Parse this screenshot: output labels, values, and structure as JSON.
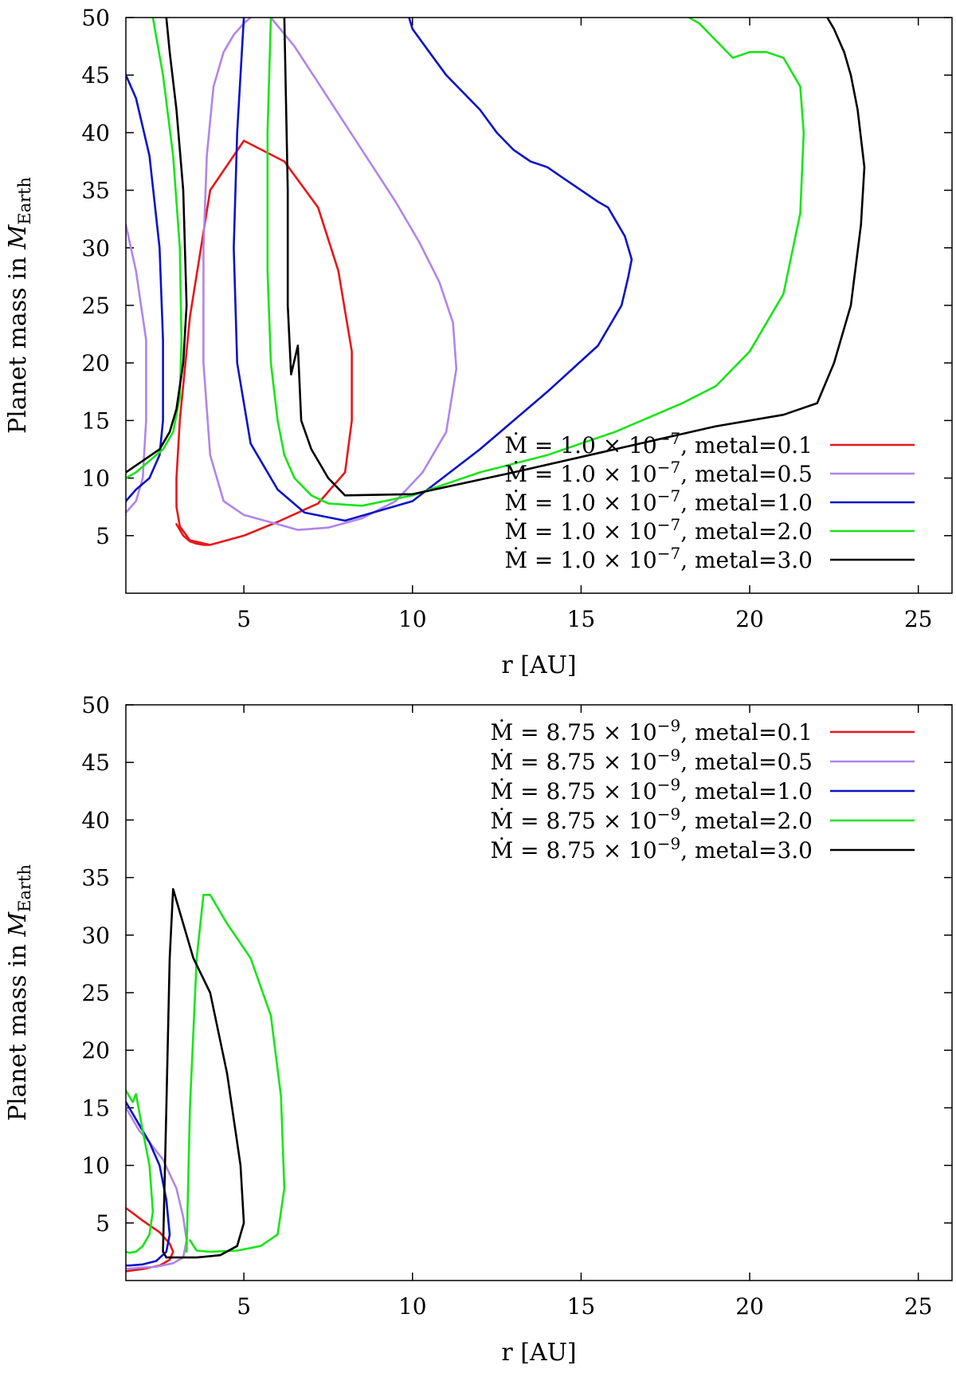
{
  "chart_data": [
    {
      "type": "line",
      "title": "",
      "xlabel": "r [AU]",
      "ylabel": "Planet mass in M_Earth",
      "ylabel_main": "Planet mass in ",
      "ylabel_symbol": "M",
      "ylabel_sub": "Earth",
      "xlim": [
        1.5,
        26
      ],
      "ylim": [
        0,
        50
      ],
      "xticks": [
        5,
        10,
        15,
        20,
        25
      ],
      "yticks": [
        5,
        10,
        15,
        20,
        25,
        30,
        35,
        40,
        45,
        50
      ],
      "grid": false,
      "legend_position": "bottom-right",
      "series": [
        {
          "name": "Ṁ = 1.0 × 10^-7, metal=0.1",
          "legend_prefix": "Ṁ = 1.0 × 10",
          "legend_exp": "−7",
          "legend_suffix": ", metal=0.1",
          "color": "#e8161a",
          "x": [
            4.0,
            3.4,
            3.1,
            3.0,
            3.0,
            3.1,
            3.4,
            4.0,
            5.0,
            6.2,
            7.2,
            7.8,
            8.2,
            8.2,
            8.0,
            7.2,
            6.0,
            5.0,
            4.0,
            3.8,
            3.6,
            3.4,
            3.2,
            3.0
          ],
          "y": [
            4.2,
            4.6,
            5.8,
            7.5,
            10,
            15,
            24,
            35,
            39.3,
            37.5,
            33.5,
            28,
            21,
            15,
            10.5,
            7.8,
            6.2,
            5.0,
            4.2,
            4.2,
            4.3,
            4.5,
            5.0,
            6.0
          ]
        },
        {
          "name": "Ṁ = 1.0 × 10^-7, metal=0.5 (inner)",
          "legend_prefix": "Ṁ = 1.0 × 10",
          "legend_exp": "−7",
          "legend_suffix": ", metal=0.5",
          "color": "#b085e8",
          "x": [
            1.5,
            1.8,
            2.1,
            2.1,
            2.0,
            1.8,
            1.5
          ],
          "y": [
            32,
            28,
            22,
            15,
            10,
            8,
            7
          ]
        },
        {
          "name": "Ṁ = 1.0 × 10^-7, metal=0.5 (outer)",
          "color": "#b085e8",
          "x": [
            5.2,
            5.0,
            4.7,
            4.4,
            4.1,
            3.9,
            3.8,
            3.8,
            4.0,
            4.4,
            5.0,
            5.5,
            6.0,
            6.6,
            7.5,
            8.5,
            9.5,
            10.3,
            11.0,
            11.3,
            11.2,
            10.8,
            10.2,
            9.5,
            8.5,
            7.5,
            6.5,
            5.8
          ],
          "y": [
            50,
            49.5,
            48.5,
            47,
            44,
            38,
            30,
            20,
            12,
            8,
            6.8,
            6.4,
            6,
            5.5,
            5.7,
            6.5,
            8,
            10.5,
            14,
            19.5,
            23.5,
            27,
            30.5,
            34,
            38.5,
            43,
            47.5,
            50
          ]
        },
        {
          "name": "Ṁ = 1.0 × 10^-7, metal=1.0 (inner)",
          "legend_prefix": "Ṁ = 1.0 × 10",
          "legend_exp": "−7",
          "legend_suffix": ", metal=1.0",
          "color": "#0a12c8",
          "x": [
            1.5,
            1.8,
            2.2,
            2.5,
            2.6,
            2.6,
            2.5,
            2.2,
            1.8,
            1.5
          ],
          "y": [
            45,
            43,
            38,
            30,
            22,
            15,
            12,
            10,
            9,
            8
          ]
        },
        {
          "name": "Ṁ = 1.0 × 10^-7, metal=1.0 (outer)",
          "color": "#0a12c8",
          "x": [
            5.0,
            4.8,
            4.7,
            4.8,
            5.2,
            6.0,
            6.8,
            8.0,
            10.0,
            12.0,
            14.0,
            15.5,
            16.2,
            16.4,
            16.5,
            16.3,
            16.0,
            15.8,
            15.5,
            15.0,
            14.5,
            14.0,
            13.5,
            13.0,
            12.5,
            12.0,
            11.5,
            11.0,
            10.5,
            10.0,
            9.9
          ],
          "y": [
            50,
            40,
            30,
            20,
            13,
            9,
            7,
            6.3,
            8,
            12.5,
            17.5,
            21.5,
            25,
            27.5,
            29,
            31,
            32.5,
            33.5,
            34,
            35,
            36,
            37,
            37.5,
            38.5,
            40,
            42,
            43.5,
            45,
            47,
            49,
            50
          ]
        },
        {
          "name": "Ṁ = 1.0 × 10^-7, metal=2.0 (inner)",
          "legend_prefix": "Ṁ = 1.0 × 10",
          "legend_exp": "−7",
          "legend_suffix": ", metal=2.0",
          "color": "#18e518",
          "x": [
            2.3,
            2.6,
            2.9,
            3.1,
            3.15,
            3.1,
            2.9,
            2.6,
            2.2,
            1.8,
            1.5
          ],
          "y": [
            50,
            45,
            38,
            30,
            22,
            17,
            14,
            12.5,
            11.5,
            10.5,
            10
          ]
        },
        {
          "name": "Ṁ = 1.0 × 10^-7, metal=2.0 (outer)",
          "color": "#18e518",
          "x": [
            5.8,
            5.7,
            5.7,
            5.8,
            6.0,
            6.2,
            6.5,
            7.0,
            7.5,
            8.5,
            10.0,
            12.0,
            14.0,
            16.0,
            18.0,
            19.0,
            20.0,
            21.0,
            21.5,
            21.6,
            21.5,
            21.0,
            20.5,
            20.0,
            19.5,
            19.0,
            18.5,
            18.2
          ],
          "y": [
            50,
            40,
            28,
            20,
            15,
            12,
            10,
            8.5,
            7.8,
            7.6,
            8.5,
            10.5,
            12,
            14,
            16.5,
            18,
            21,
            26,
            33,
            40,
            44,
            46.5,
            47,
            47,
            46.5,
            48,
            49.5,
            50
          ]
        },
        {
          "name": "Ṁ = 1.0 × 10^-7, metal=3.0 (inner)",
          "legend_prefix": "Ṁ = 1.0 × 10",
          "legend_exp": "−7",
          "legend_suffix": ", metal=3.0",
          "color": "#000000",
          "x": [
            2.7,
            2.8,
            3.0,
            3.2,
            3.3,
            3.2,
            3.0,
            2.8,
            2.5,
            2.0,
            1.5
          ],
          "y": [
            50,
            47,
            42,
            35,
            25,
            20,
            16,
            14,
            12.5,
            11.5,
            10.5
          ]
        },
        {
          "name": "Ṁ = 1.0 × 10^-7, metal=3.0 (outer)",
          "color": "#000000",
          "x": [
            6.2,
            6.3,
            6.3,
            6.4,
            6.6,
            6.7,
            7.0,
            7.2,
            7.5,
            8.0,
            10.0,
            13.0,
            16.0,
            19.0,
            21.0,
            22.0,
            22.5,
            23.0,
            23.3,
            23.4,
            23.2,
            23.0,
            22.8,
            22.5,
            22.3
          ],
          "y": [
            50,
            35,
            25,
            19,
            21.5,
            15,
            12.5,
            11.5,
            10,
            8.5,
            8.6,
            10.5,
            12.5,
            14.5,
            15.5,
            16.5,
            20,
            25,
            32,
            37,
            42,
            45,
            47,
            49,
            50
          ]
        }
      ]
    },
    {
      "type": "line",
      "title": "",
      "xlabel": "r [AU]",
      "ylabel": "Planet mass in M_Earth",
      "ylabel_main": "Planet mass in ",
      "ylabel_symbol": "M",
      "ylabel_sub": "Earth",
      "xlim": [
        1.5,
        26
      ],
      "ylim": [
        0,
        50
      ],
      "xticks": [
        5,
        10,
        15,
        20,
        25
      ],
      "yticks": [
        5,
        10,
        15,
        20,
        25,
        30,
        35,
        40,
        45,
        50
      ],
      "grid": false,
      "legend_position": "top-right",
      "series": [
        {
          "name": "Ṁ = 8.75 × 10^-9, metal=0.1",
          "legend_prefix": "Ṁ = 8.75 × 10",
          "legend_exp": "−9",
          "legend_suffix": ", metal=0.1",
          "color": "#e8161a",
          "x": [
            1.5,
            2.0,
            2.5,
            2.8,
            2.9,
            2.8,
            2.5,
            2.0,
            1.5
          ],
          "y": [
            6.3,
            5.2,
            4.2,
            3.2,
            2.5,
            1.8,
            1.3,
            1.0,
            0.8
          ]
        },
        {
          "name": "Ṁ = 8.75 × 10^-9, metal=0.5",
          "legend_prefix": "Ṁ = 8.75 × 10",
          "legend_exp": "−9",
          "legend_suffix": ", metal=0.5",
          "color": "#b085e8",
          "x": [
            1.5,
            1.7,
            1.9,
            2.2,
            2.6,
            3.0,
            3.2,
            3.3,
            3.2,
            2.9,
            2.4,
            1.9,
            1.5
          ],
          "y": [
            15,
            14,
            13,
            12,
            10.5,
            8,
            5.5,
            3.5,
            2.0,
            1.5,
            1.2,
            1.1,
            1.0
          ]
        },
        {
          "name": "Ṁ = 8.75 × 10^-9, metal=1.0",
          "legend_prefix": "Ṁ = 8.75 × 10",
          "legend_exp": "−9",
          "legend_suffix": ", metal=1.0",
          "color": "#0a12c8",
          "x": [
            1.5,
            1.8,
            2.2,
            2.5,
            2.7,
            2.8,
            2.7,
            2.4,
            2.0,
            1.6,
            1.5
          ],
          "y": [
            15.5,
            14,
            12,
            10,
            7,
            4,
            2.5,
            1.7,
            1.4,
            1.3,
            1.3
          ]
        },
        {
          "name": "Ṁ = 8.75 × 10^-9, metal=2.0 (inner)",
          "legend_prefix": "Ṁ = 8.75 × 10",
          "legend_exp": "−9",
          "legend_suffix": ", metal=2.0",
          "color": "#18e518",
          "x": [
            1.5,
            1.7,
            1.8,
            2.0,
            2.2,
            2.3,
            2.2,
            2.0,
            1.8,
            1.6,
            1.5
          ],
          "y": [
            16.5,
            15.5,
            16.2,
            13,
            10,
            6,
            4,
            3,
            2.5,
            2.4,
            2.5
          ]
        },
        {
          "name": "Ṁ = 8.75 × 10^-9, metal=2.0 (outer)",
          "color": "#18e518",
          "x": [
            3.3,
            3.4,
            3.6,
            3.8,
            4.0,
            4.5,
            5.2,
            5.8,
            6.1,
            6.2,
            6.0,
            5.5,
            4.8,
            4.0,
            3.6,
            3.4
          ],
          "y": [
            2.5,
            15,
            28,
            33.5,
            33.5,
            31,
            28,
            23,
            16,
            8,
            4,
            3,
            2.6,
            2.5,
            2.6,
            3.5
          ]
        },
        {
          "name": "Ṁ = 8.75 × 10^-9, metal=3.0",
          "legend_prefix": "Ṁ = 8.75 × 10",
          "legend_exp": "−9",
          "legend_suffix": ", metal=3.0",
          "color": "#000000",
          "x": [
            2.6,
            2.7,
            2.8,
            2.9,
            3.1,
            3.5,
            4.0,
            4.5,
            4.9,
            5.0,
            4.8,
            4.3,
            3.6,
            3.0,
            2.7,
            2.6
          ],
          "y": [
            2.5,
            15,
            28,
            34,
            32,
            28,
            25,
            18,
            10,
            5,
            3,
            2.2,
            2.0,
            2.0,
            2.0,
            2.5
          ]
        }
      ]
    }
  ]
}
